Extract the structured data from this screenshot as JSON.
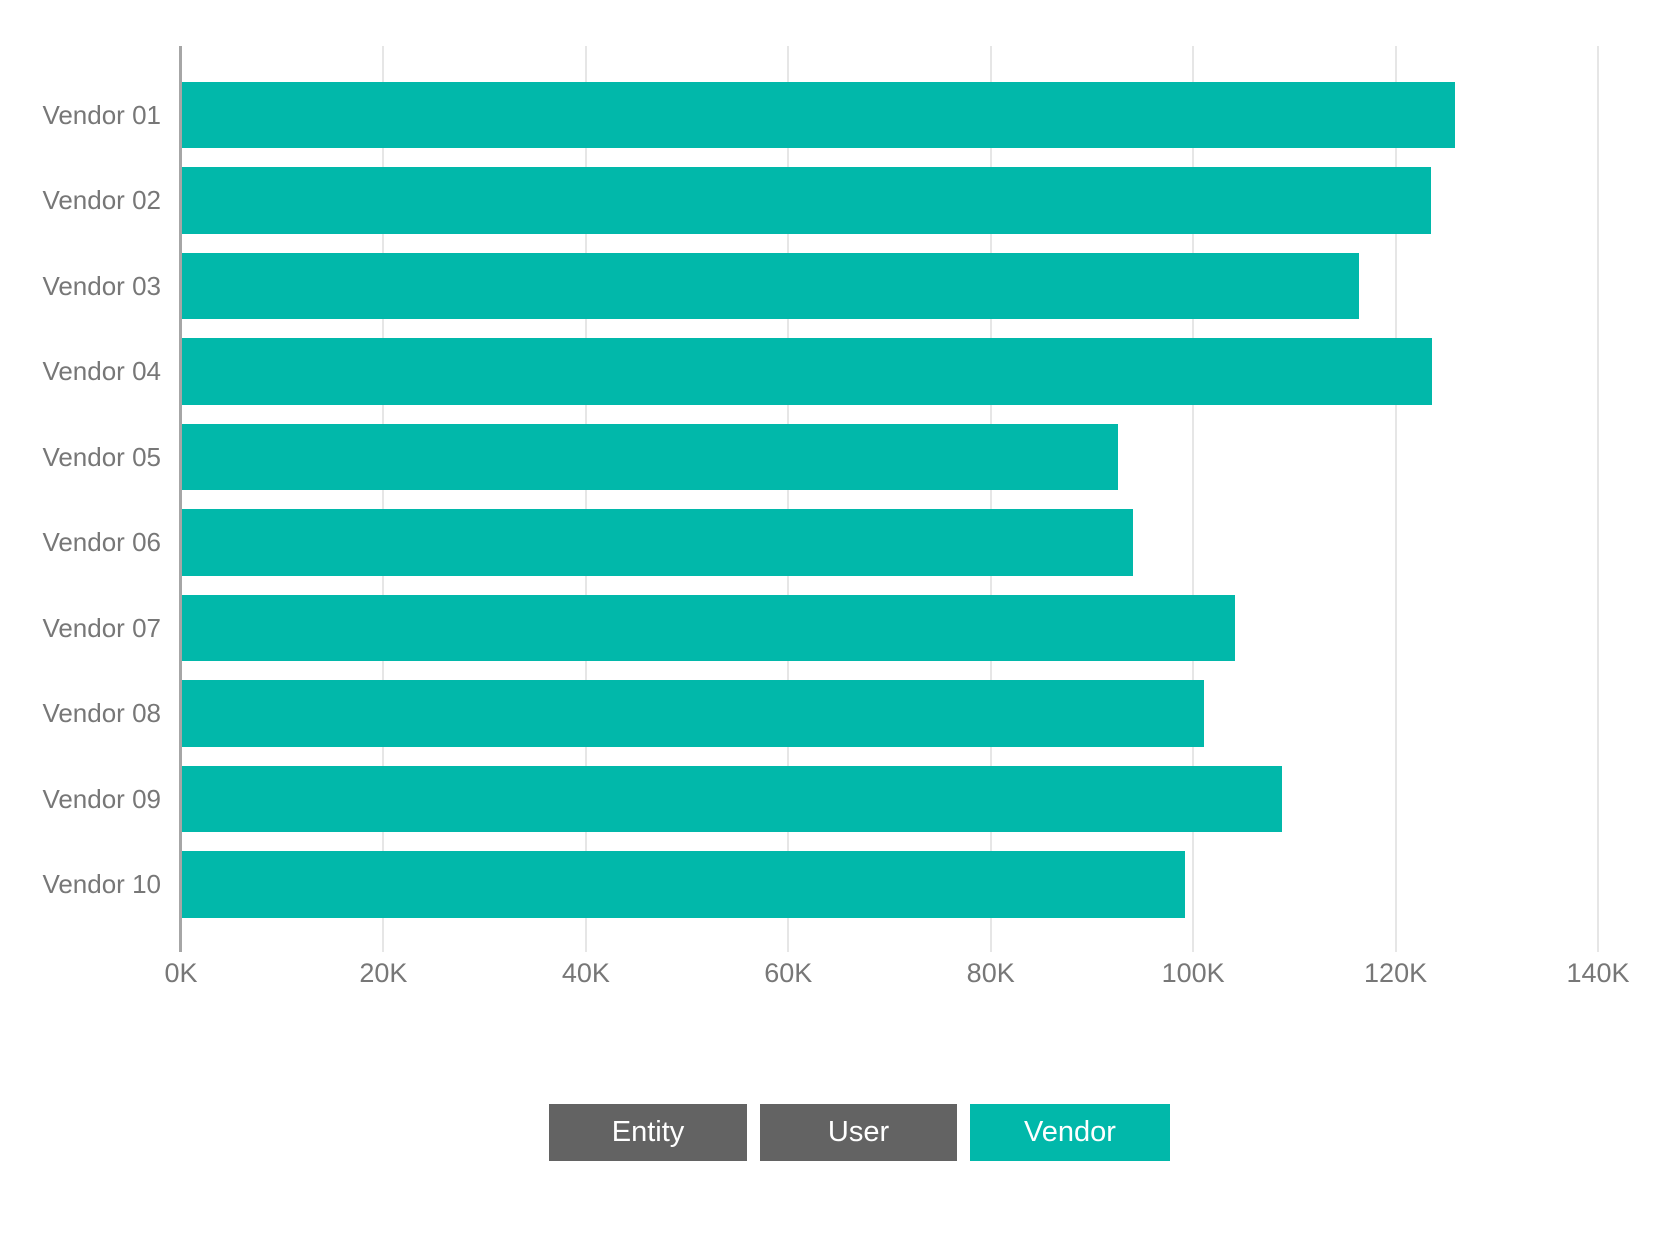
{
  "chart_data": {
    "type": "bar",
    "orientation": "horizontal",
    "categories": [
      "Vendor 01",
      "Vendor 02",
      "Vendor 03",
      "Vendor 04",
      "Vendor 05",
      "Vendor 06",
      "Vendor 07",
      "Vendor 08",
      "Vendor 09",
      "Vendor 10"
    ],
    "values": [
      125800,
      123400,
      116300,
      123500,
      92500,
      94000,
      104000,
      101000,
      108700,
      99100
    ],
    "series_name": "Vendor",
    "x_tick_labels": [
      "0K",
      "20K",
      "40K",
      "60K",
      "80K",
      "100K",
      "120K",
      "140K"
    ],
    "xlim": [
      0,
      140000
    ],
    "grid": true,
    "legend_position": "bottom",
    "bar_color": "#01B8AA"
  },
  "legend": {
    "buttons": [
      {
        "label": "Entity",
        "active": false
      },
      {
        "label": "User",
        "active": false
      },
      {
        "label": "Vendor",
        "active": true
      }
    ],
    "inactive_color": "#636363",
    "active_color": "#01B8AA",
    "text_color": "#FFFFFF"
  },
  "colors": {
    "axis_text": "#777777",
    "gridline": "#E6E6E6",
    "axis_line": "#A6A6A6",
    "background": "#FFFFFF"
  }
}
